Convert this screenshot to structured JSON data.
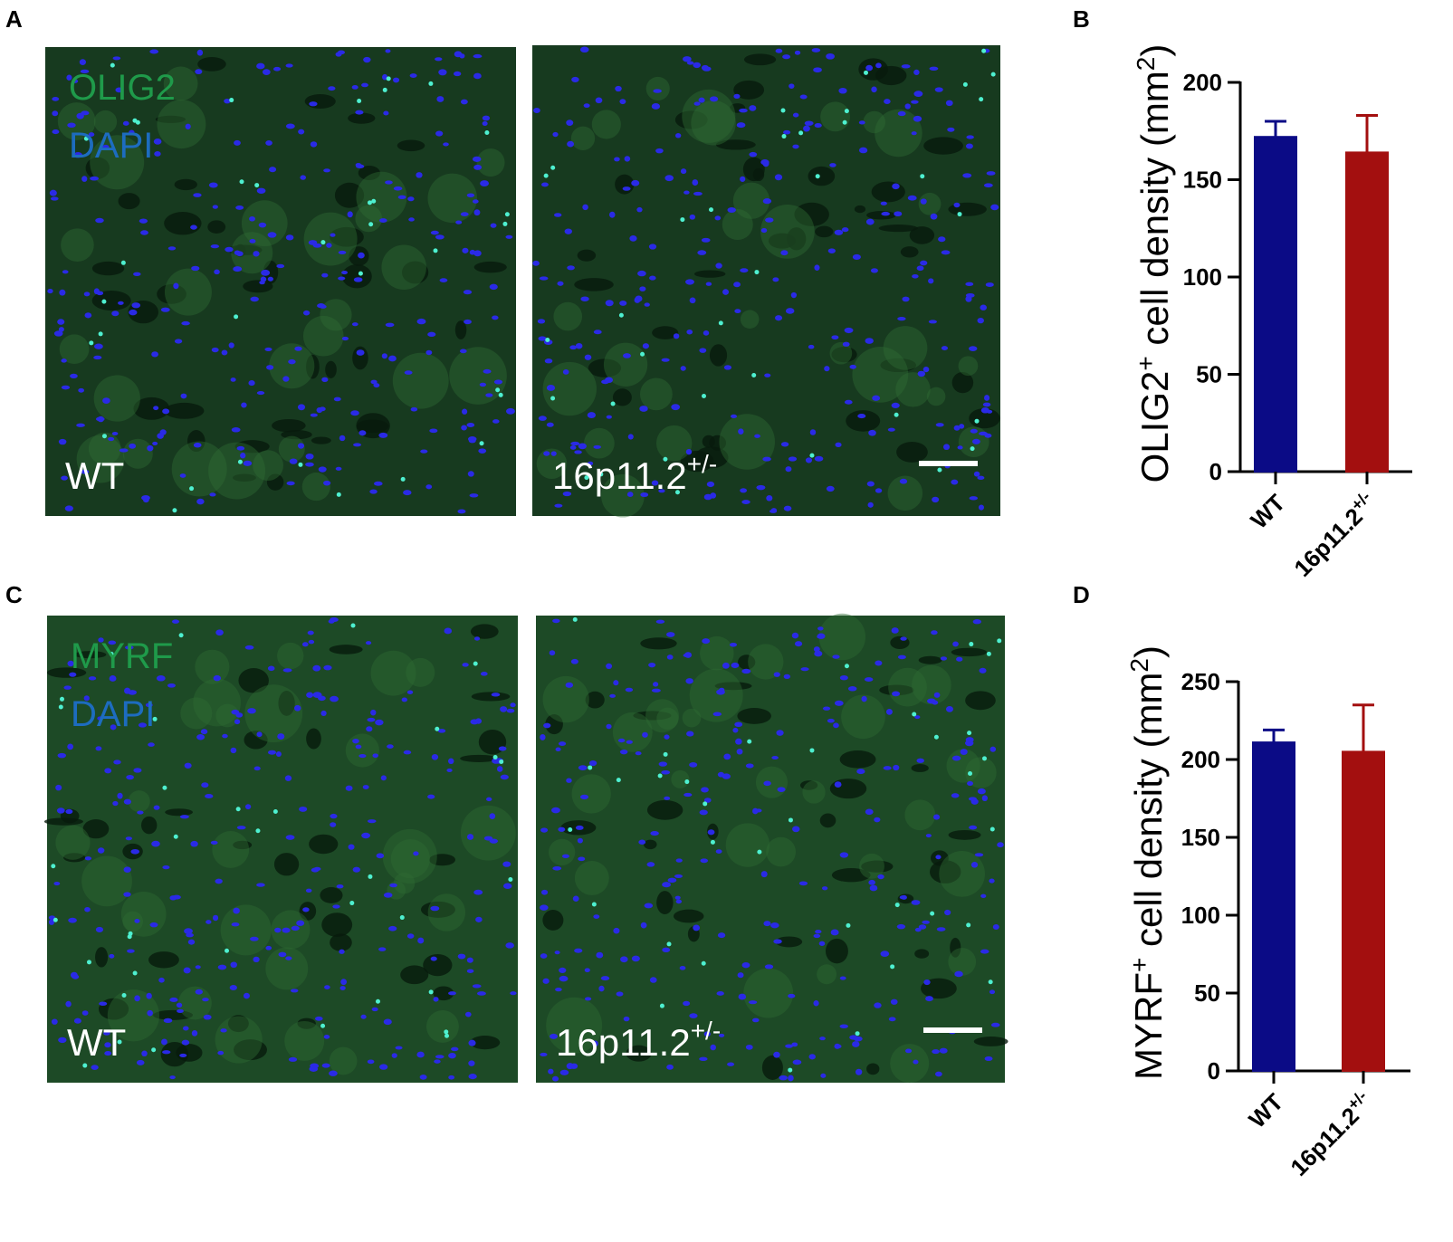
{
  "panel_labels": [
    "A",
    "B",
    "C",
    "D"
  ],
  "images": [
    {
      "stains": [
        "OLIG2",
        "DAPI"
      ],
      "labels": [
        {
          "text": "WT"
        },
        {
          "text": "16p11.2",
          "sup": "+/-"
        }
      ]
    },
    {
      "stains": [
        "MYRF",
        "DAPI"
      ],
      "labels": [
        {
          "text": "WT"
        },
        {
          "text": "16p11.2",
          "sup": "+/-"
        }
      ]
    }
  ],
  "chart_data": [
    {
      "type": "bar",
      "y_label": [
        {
          "text": "OLIG2"
        },
        {
          "text": "+",
          "sup": true
        },
        {
          "text": " cell density (mm"
        },
        {
          "text": "2",
          "sup": true
        },
        {
          "text": ")"
        }
      ],
      "categories": [
        "WT",
        "16p11.2"
      ],
      "category_sups": [
        null,
        "+/-"
      ],
      "values": [
        172,
        164
      ],
      "errors": [
        8,
        19
      ],
      "colors": [
        "#0b0b86",
        "#a30f0f"
      ],
      "ylim": [
        0,
        200
      ],
      "yticks": [
        0,
        50,
        100,
        150,
        200
      ]
    },
    {
      "type": "bar",
      "y_label": [
        {
          "text": "MYRF"
        },
        {
          "text": "+",
          "sup": true
        },
        {
          "text": " cell density (mm"
        },
        {
          "text": "2",
          "sup": true
        },
        {
          "text": ")"
        }
      ],
      "categories": [
        "WT",
        "16p11.2"
      ],
      "category_sups": [
        null,
        "+/-"
      ],
      "values": [
        211,
        205
      ],
      "errors": [
        8,
        30
      ],
      "colors": [
        "#0b0b86",
        "#a30f0f"
      ],
      "ylim": [
        0,
        250
      ],
      "yticks": [
        0,
        50,
        100,
        150,
        200,
        250
      ]
    }
  ]
}
